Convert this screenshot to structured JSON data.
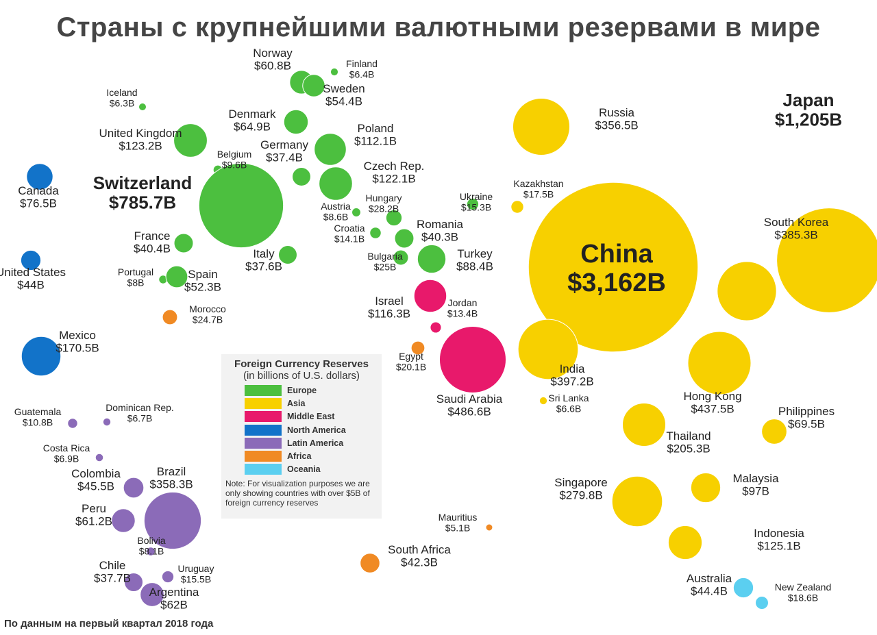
{
  "title": "Страны с крупнейшими валютными резервами в мире",
  "footer": "По данным на первый квартал 2018 года",
  "legend": {
    "title": "Foreign Currency Reserves",
    "subtitle": "(in billions of U.S. dollars)",
    "items": [
      {
        "name": "Europe",
        "color": "#4cbf3f"
      },
      {
        "name": "Asia",
        "color": "#f7d000"
      },
      {
        "name": "Middle East",
        "color": "#e8196b"
      },
      {
        "name": "North America",
        "color": "#1273c9"
      },
      {
        "name": "Latin America",
        "color": "#8b6bb8"
      },
      {
        "name": "Africa",
        "color": "#f08a24"
      },
      {
        "name": "Oceania",
        "color": "#5bcff0"
      }
    ],
    "note": "Note: For visualization purposes we are only showing countries with over $5B of foreign currency reserves"
  },
  "countries": [
    {
      "name": "Norway",
      "value": 60.8,
      "value_label": "$60.8B",
      "region": "Europe"
    },
    {
      "name": "Finland",
      "value": 6.4,
      "value_label": "$6.4B",
      "region": "Europe"
    },
    {
      "name": "Sweden",
      "value": 54.4,
      "value_label": "$54.4B",
      "region": "Europe"
    },
    {
      "name": "Iceland",
      "value": 6.3,
      "value_label": "$6.3B",
      "region": "Europe"
    },
    {
      "name": "Denmark",
      "value": 64.9,
      "value_label": "$64.9B",
      "region": "Europe"
    },
    {
      "name": "United Kingdom",
      "value": 123.2,
      "value_label": "$123.2B",
      "region": "Europe"
    },
    {
      "name": "Belgium",
      "value": 9.6,
      "value_label": "$9.6B",
      "region": "Europe"
    },
    {
      "name": "Germany",
      "value": 37.4,
      "value_label": "$37.4B",
      "region": "Europe"
    },
    {
      "name": "Poland",
      "value": 112.1,
      "value_label": "$112.1B",
      "region": "Europe"
    },
    {
      "name": "Czech Rep.",
      "value": 122.1,
      "value_label": "$122.1B",
      "region": "Europe"
    },
    {
      "name": "Switzerland",
      "value": 785.7,
      "value_label": "$785.7B",
      "region": "Europe"
    },
    {
      "name": "Austria",
      "value": 8.6,
      "value_label": "$8.6B",
      "region": "Europe"
    },
    {
      "name": "Hungary",
      "value": 28.2,
      "value_label": "$28.2B",
      "region": "Europe"
    },
    {
      "name": "Ukraine",
      "value": 15.3,
      "value_label": "$15.3B",
      "region": "Europe"
    },
    {
      "name": "Kazakhstan",
      "value": 17.5,
      "value_label": "$17.5B",
      "region": "Asia"
    },
    {
      "name": "France",
      "value": 40.4,
      "value_label": "$40.4B",
      "region": "Europe"
    },
    {
      "name": "Croatia",
      "value": 14.1,
      "value_label": "$14.1B",
      "region": "Europe"
    },
    {
      "name": "Romania",
      "value": 40.3,
      "value_label": "$40.3B",
      "region": "Europe"
    },
    {
      "name": "Italy",
      "value": 37.6,
      "value_label": "$37.6B",
      "region": "Europe"
    },
    {
      "name": "Bulgaria",
      "value": 25,
      "value_label": "$25B",
      "region": "Europe"
    },
    {
      "name": "Turkey",
      "value": 88.4,
      "value_label": "$88.4B",
      "region": "Europe"
    },
    {
      "name": "Portugal",
      "value": 8,
      "value_label": "$8B",
      "region": "Europe"
    },
    {
      "name": "Spain",
      "value": 52.3,
      "value_label": "$52.3B",
      "region": "Europe"
    },
    {
      "name": "Morocco",
      "value": 24.7,
      "value_label": "$24.7B",
      "region": "Africa"
    },
    {
      "name": "Israel",
      "value": 116.3,
      "value_label": "$116.3B",
      "region": "Middle East"
    },
    {
      "name": "Jordan",
      "value": 13.4,
      "value_label": "$13.4B",
      "region": "Middle East"
    },
    {
      "name": "Egypt",
      "value": 20.1,
      "value_label": "$20.1B",
      "region": "Africa"
    },
    {
      "name": "Saudi Arabia",
      "value": 486.6,
      "value_label": "$486.6B",
      "region": "Middle East"
    },
    {
      "name": "Russia",
      "value": 356.5,
      "value_label": "$356.5B",
      "region": "Asia"
    },
    {
      "name": "Japan",
      "value": 1205,
      "value_label": "$1,205B",
      "region": "Asia"
    },
    {
      "name": "China",
      "value": 3162,
      "value_label": "$3,162B",
      "region": "Asia"
    },
    {
      "name": "South Korea",
      "value": 385.3,
      "value_label": "$385.3B",
      "region": "Asia"
    },
    {
      "name": "India",
      "value": 397.2,
      "value_label": "$397.2B",
      "region": "Asia"
    },
    {
      "name": "Sri Lanka",
      "value": 6.6,
      "value_label": "$6.6B",
      "region": "Asia"
    },
    {
      "name": "Hong Kong",
      "value": 437.5,
      "value_label": "$437.5B",
      "region": "Asia"
    },
    {
      "name": "Philippines",
      "value": 69.5,
      "value_label": "$69.5B",
      "region": "Asia"
    },
    {
      "name": "Thailand",
      "value": 205.3,
      "value_label": "$205.3B",
      "region": "Asia"
    },
    {
      "name": "Malaysia",
      "value": 97,
      "value_label": "$97B",
      "region": "Asia"
    },
    {
      "name": "Singapore",
      "value": 279.8,
      "value_label": "$279.8B",
      "region": "Asia"
    },
    {
      "name": "Indonesia",
      "value": 125.1,
      "value_label": "$125.1B",
      "region": "Asia"
    },
    {
      "name": "Australia",
      "value": 44.4,
      "value_label": "$44.4B",
      "region": "Oceania"
    },
    {
      "name": "New Zealand",
      "value": 18.6,
      "value_label": "$18.6B",
      "region": "Oceania"
    },
    {
      "name": "Mauritius",
      "value": 5.1,
      "value_label": "$5.1B",
      "region": "Africa"
    },
    {
      "name": "South Africa",
      "value": 42.3,
      "value_label": "$42.3B",
      "region": "Africa"
    },
    {
      "name": "Canada",
      "value": 76.5,
      "value_label": "$76.5B",
      "region": "North America"
    },
    {
      "name": "United States",
      "value": 44,
      "value_label": "$44B",
      "region": "North America"
    },
    {
      "name": "Mexico",
      "value": 170.5,
      "value_label": "$170.5B",
      "region": "North America"
    },
    {
      "name": "Guatemala",
      "value": 10.8,
      "value_label": "$10.8B",
      "region": "Latin America"
    },
    {
      "name": "Dominican Rep.",
      "value": 6.7,
      "value_label": "$6.7B",
      "region": "Latin America"
    },
    {
      "name": "Costa Rica",
      "value": 6.9,
      "value_label": "$6.9B",
      "region": "Latin America"
    },
    {
      "name": "Colombia",
      "value": 45.5,
      "value_label": "$45.5B",
      "region": "Latin America"
    },
    {
      "name": "Brazil",
      "value": 358.3,
      "value_label": "$358.3B",
      "region": "Latin America"
    },
    {
      "name": "Peru",
      "value": 61.2,
      "value_label": "$61.2B",
      "region": "Latin America"
    },
    {
      "name": "Bolivia",
      "value": 8.1,
      "value_label": "$8.1B",
      "region": "Latin America"
    },
    {
      "name": "Chile",
      "value": 37.7,
      "value_label": "$37.7B",
      "region": "Latin America"
    },
    {
      "name": "Uruguay",
      "value": 15.5,
      "value_label": "$15.5B",
      "region": "Latin America"
    },
    {
      "name": "Argentina",
      "value": 62,
      "value_label": "$62B",
      "region": "Latin America"
    }
  ]
}
